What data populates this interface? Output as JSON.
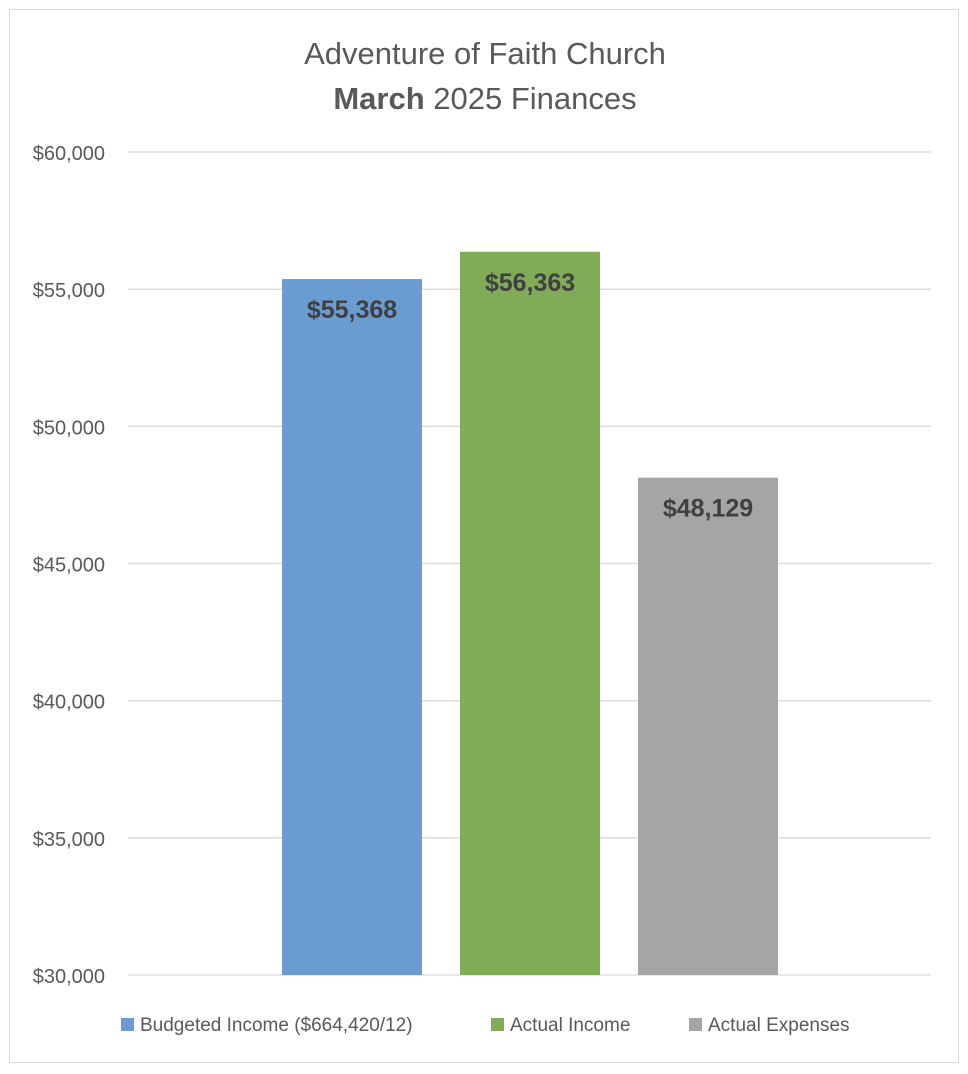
{
  "chart_data": {
    "type": "bar",
    "title": {
      "line1": "Adventure of Faith Church",
      "line2_bold": "March",
      "line2_rest": " 2025 Finances"
    },
    "categories": [
      "Budgeted Income ($664,420/12)",
      "Actual Income",
      "Actual Expenses"
    ],
    "values": [
      55368,
      56363,
      48129
    ],
    "data_labels": [
      "$55,368",
      "$56,363",
      "$48,129"
    ],
    "colors": [
      "#6a9bd1",
      "#80ac57",
      "#a5a5a5"
    ],
    "ylim": [
      30000,
      60000
    ],
    "yticks": [
      30000,
      35000,
      40000,
      45000,
      50000,
      55000,
      60000
    ],
    "ytick_labels": [
      "$30,000",
      "$35,000",
      "$40,000",
      "$45,000",
      "$50,000",
      "$55,000",
      "$60,000"
    ],
    "grid": true,
    "legend_position": "bottom",
    "legend": [
      "Budgeted Income ($664,420/12)",
      "Actual Income",
      "Actual Expenses"
    ],
    "xlabel": "",
    "ylabel": ""
  }
}
